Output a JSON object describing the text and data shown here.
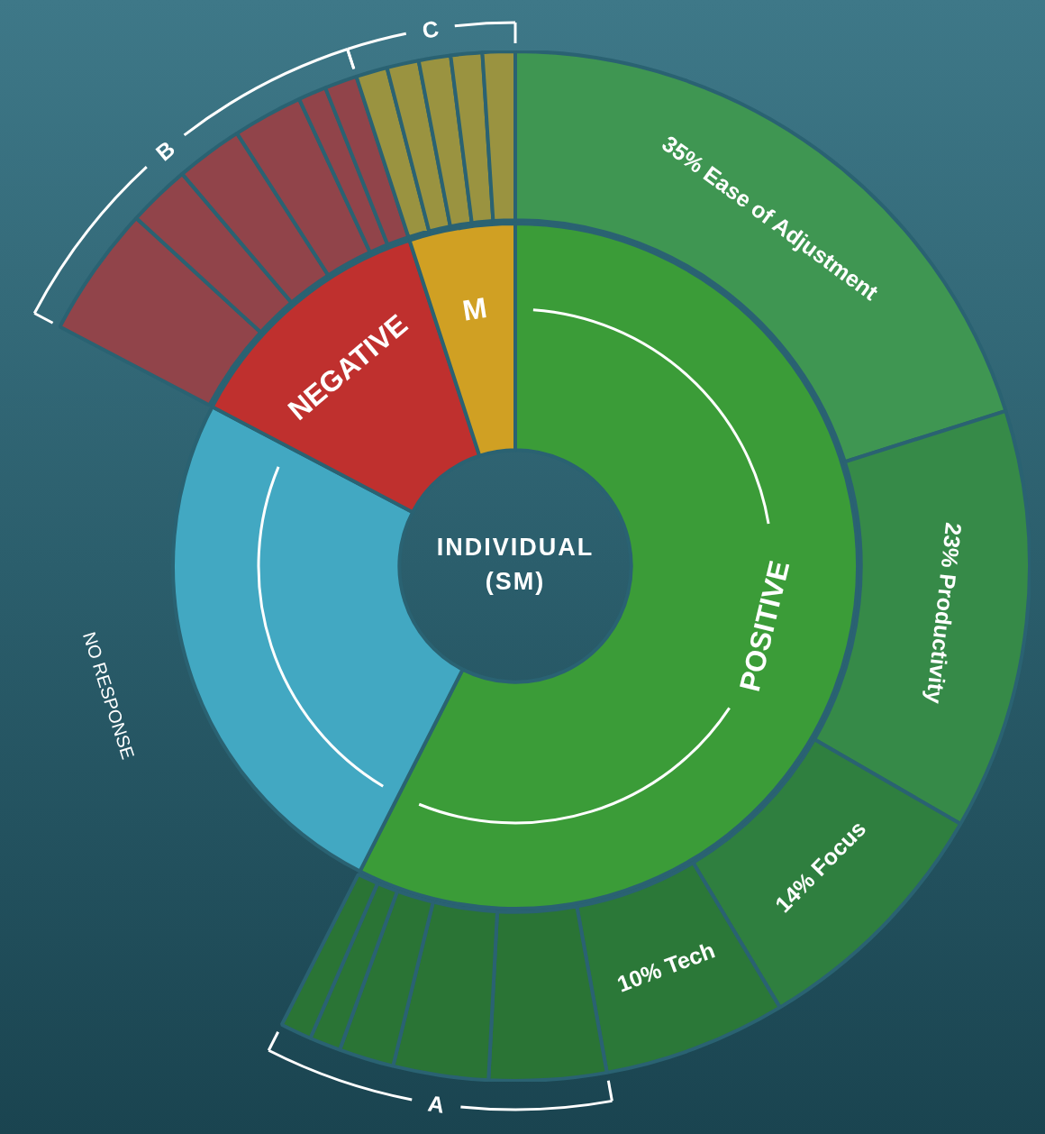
{
  "chart_data": [
    {
      "type": "donut",
      "title": "INDIVIDUAL (SM)",
      "categories": [
        "POSITIVE",
        "NO RESPONSE",
        "NEGATIVE",
        "M"
      ],
      "values": [
        57.5,
        25.2,
        12.3,
        5.0
      ],
      "colors": [
        "#3b9c38",
        "#42a8c2",
        "#bf302e",
        "#d0a023"
      ]
    },
    {
      "type": "donut",
      "categories": [
        "Ease of Adjustment",
        "Productivity",
        "Focus",
        "Tech",
        null,
        null,
        null,
        null,
        null
      ],
      "values": [
        35,
        23,
        14,
        10,
        6.4,
        5.2,
        3.0,
        1.7,
        1.7
      ],
      "value_labels": [
        "35%",
        "23%",
        "14%",
        "10%",
        null,
        null,
        null,
        null,
        null
      ],
      "colors": [
        "#3f9652",
        "#368a48",
        "#2f7f3f",
        "#2b7838",
        "#2a7435",
        "#2a7435",
        "#2a7435",
        "#2a7435",
        "#2a7435"
      ],
      "annotations": [
        "A"
      ]
    },
    {
      "type": "donut",
      "categories": [
        null,
        null,
        null,
        null,
        null,
        null,
        null,
        null,
        null,
        null,
        null
      ],
      "values": [
        23.8,
        11.4,
        12.2,
        12.7,
        5.1,
        5.9,
        5.7,
        5.8,
        5.8,
        5.7,
        5.9
      ],
      "colors": [
        "#91444a",
        "#91444a",
        "#91444a",
        "#91444a",
        "#91444a",
        "#91444a",
        "#9a9340",
        "#9a9340",
        "#9a9340",
        "#9a9340",
        "#9a9340"
      ],
      "annotations": [
        "B",
        "C"
      ]
    }
  ]
}
